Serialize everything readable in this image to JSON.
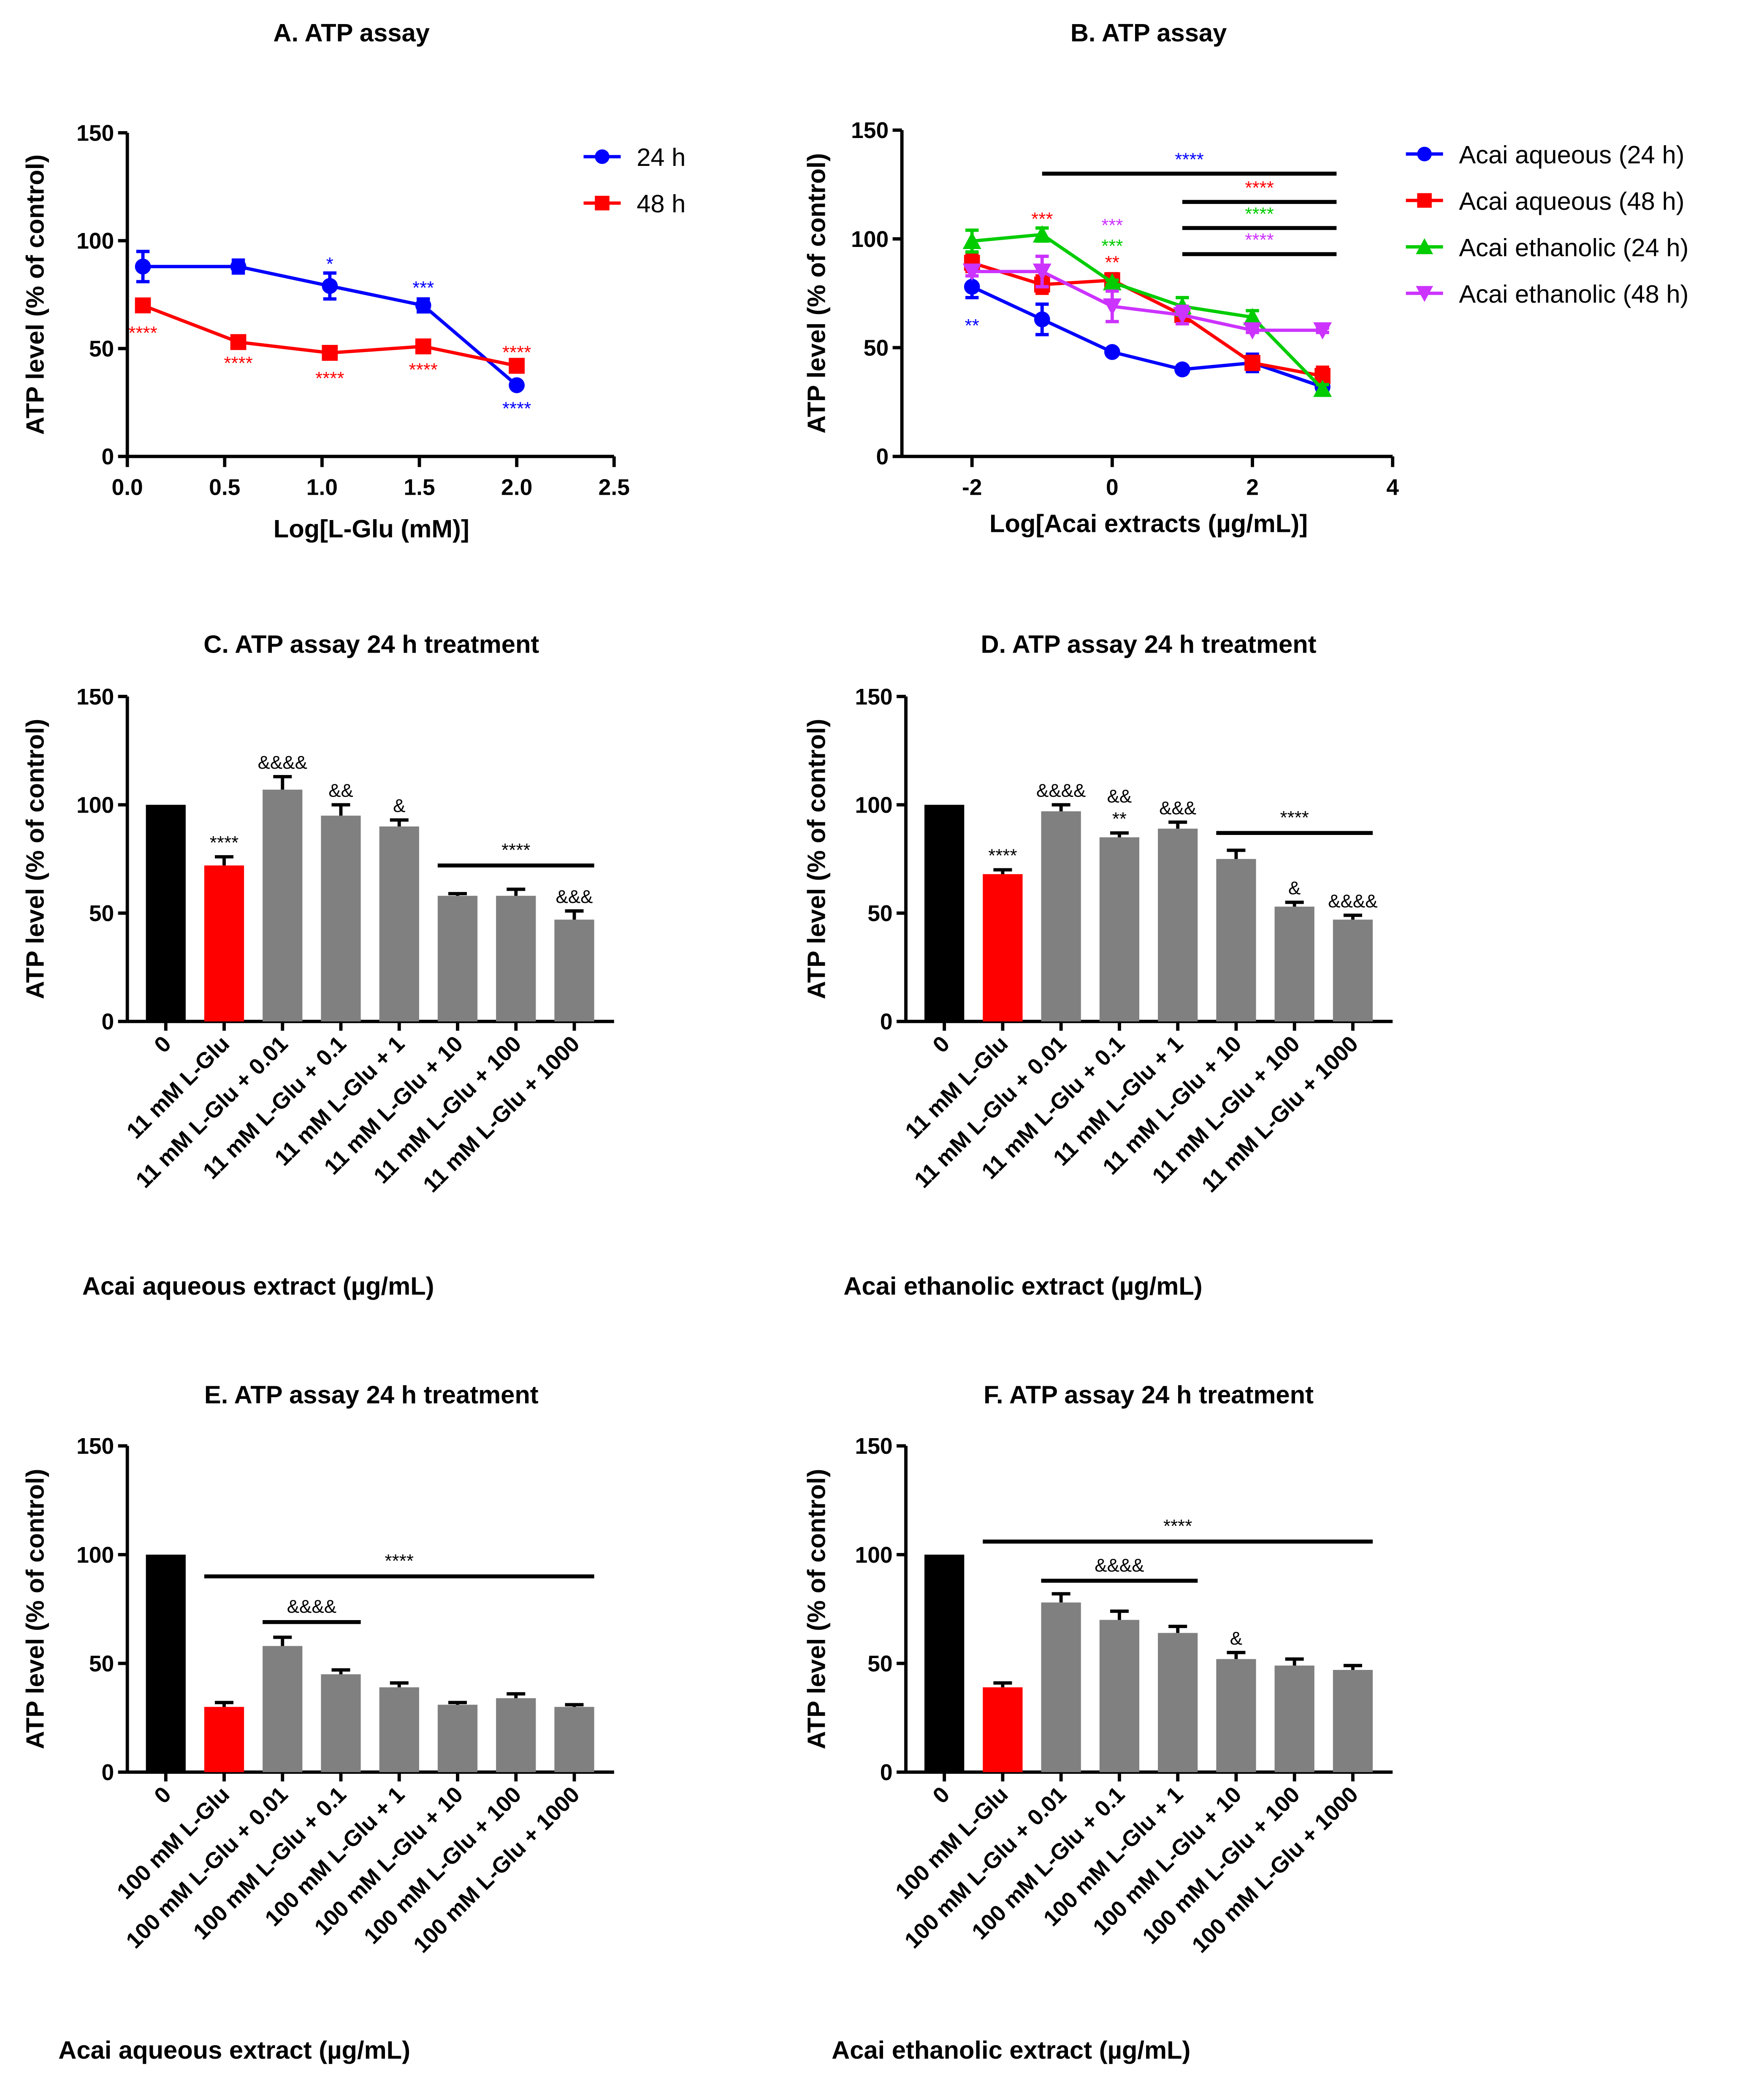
{
  "chart_data": [
    {
      "type": "line",
      "title": "A. ATP assay",
      "xlabel": "Log[L-Glu (mM)]",
      "ylabel": "ATP level (% of control)",
      "xlim": [
        0,
        2.5
      ],
      "ylim": [
        0,
        150
      ],
      "xticks": [
        "0.0",
        "0.5",
        "1.0",
        "1.5",
        "2.0",
        "2.5"
      ],
      "xtick_values": [
        0,
        0.5,
        1.0,
        1.5,
        2.0,
        2.5
      ],
      "yticks": [
        "0",
        "50",
        "100",
        "150"
      ],
      "legend_position": "top-right",
      "series": [
        {
          "name": "24 h",
          "color": "#0000ff",
          "marker": "circle",
          "x": [
            0.08,
            0.57,
            1.04,
            1.52,
            2.0
          ],
          "y": [
            88,
            88,
            79,
            70,
            33
          ],
          "err": [
            7,
            3,
            6,
            3,
            1
          ]
        },
        {
          "name": "48 h",
          "color": "#ff0000",
          "marker": "square",
          "x": [
            0.08,
            0.57,
            1.04,
            1.52,
            2.0
          ],
          "y": [
            70,
            53,
            48,
            51,
            42
          ],
          "err": [
            2,
            1,
            1,
            1,
            2
          ]
        }
      ],
      "annotations": [
        {
          "text": "*",
          "x": 1.04,
          "y": 90,
          "color": "#0000ff"
        },
        {
          "text": "***",
          "x": 1.52,
          "y": 79,
          "color": "#0000ff"
        },
        {
          "text": "****",
          "x": 2.0,
          "y": 23,
          "color": "#0000ff"
        },
        {
          "text": "****",
          "x": 0.08,
          "y": 58,
          "color": "#ff0000"
        },
        {
          "text": "****",
          "x": 0.57,
          "y": 44,
          "color": "#ff0000"
        },
        {
          "text": "****",
          "x": 1.04,
          "y": 37,
          "color": "#ff0000"
        },
        {
          "text": "****",
          "x": 1.52,
          "y": 41,
          "color": "#ff0000"
        },
        {
          "text": "****",
          "x": 2.0,
          "y": 49,
          "color": "#ff0000"
        }
      ],
      "brackets": []
    },
    {
      "type": "line",
      "title": "B. ATP assay",
      "xlabel": "Log[Acai extracts (µg/mL)]",
      "ylabel": "ATP level (% of control)",
      "xlim": [
        -3,
        4
      ],
      "ylim": [
        0,
        150
      ],
      "xticks": [
        "-2",
        "0",
        "2",
        "4"
      ],
      "xtick_values": [
        -2,
        0,
        2,
        4
      ],
      "yticks": [
        "0",
        "50",
        "100",
        "150"
      ],
      "legend_position": "right",
      "series": [
        {
          "name": "Acai aqueous (24 h)",
          "color": "#0000ff",
          "marker": "circle",
          "x": [
            -2,
            -1,
            0,
            1,
            2,
            3
          ],
          "y": [
            78,
            63,
            48,
            40,
            43,
            32
          ],
          "err": [
            5,
            7,
            1,
            1,
            4,
            2
          ]
        },
        {
          "name": "Acai aqueous (48 h)",
          "color": "#ff0000",
          "marker": "square",
          "x": [
            -2,
            -1,
            0,
            1,
            2,
            3
          ],
          "y": [
            89,
            79,
            81,
            65,
            43,
            37
          ],
          "err": [
            4,
            4,
            3,
            4,
            3,
            4
          ]
        },
        {
          "name": "Acai ethanolic (24 h)",
          "color": "#00cc00",
          "marker": "triangle-up",
          "x": [
            -2,
            -1,
            0,
            1,
            2,
            3
          ],
          "y": [
            99,
            102,
            80,
            69,
            64,
            31
          ],
          "err": [
            5,
            3,
            1,
            4,
            3,
            2
          ]
        },
        {
          "name": "Acai ethanolic (48 h)",
          "color": "#cc33ff",
          "marker": "triangle-down",
          "x": [
            -2,
            -1,
            0,
            1,
            2,
            3
          ],
          "y": [
            85,
            85,
            69,
            65,
            58,
            58
          ],
          "err": [
            2,
            7,
            7,
            4,
            1,
            1
          ]
        }
      ],
      "annotations": [
        {
          "text": "**",
          "x": -2,
          "y": 61,
          "color": "#0000ff"
        },
        {
          "text": "***",
          "x": -1,
          "y": 110,
          "color": "#ff0000"
        },
        {
          "text": "***",
          "x": 0,
          "y": 107,
          "color": "#cc33ff"
        },
        {
          "text": "***",
          "x": 0,
          "y": 97.5,
          "color": "#00cc00"
        },
        {
          "text": "**",
          "x": 0,
          "y": 90,
          "color": "#ff0000"
        }
      ],
      "brackets": [
        {
          "from": -1,
          "to": 3.2,
          "value": 130,
          "label": "****",
          "color": "#0000ff"
        },
        {
          "from": 1,
          "to": 3.2,
          "value": 117,
          "label": "****",
          "color": "#ff0000"
        },
        {
          "from": 1,
          "to": 3.2,
          "value": 105,
          "label": "****",
          "color": "#00cc00"
        },
        {
          "from": 1,
          "to": 3.2,
          "value": 93,
          "label": "****",
          "color": "#cc33ff"
        }
      ]
    },
    {
      "type": "bar",
      "title": "C. ATP assay 24 h treatment",
      "xlabel": "Acai aqueous extract (µg/mL)",
      "ylabel": "ATP level (% of control)",
      "ylim": [
        0,
        150
      ],
      "yticks": [
        "0",
        "50",
        "100",
        "150"
      ],
      "categories": [
        "0",
        "11 mM L-Glu",
        "11 mM L-Glu + 0.01",
        "11 mM L-Glu + 0.1",
        "11 mM L-Glu + 1",
        "11 mM L-Glu + 10",
        "11 mM L-Glu + 100",
        "11 mM L-Glu + 1000"
      ],
      "values": [
        100,
        72,
        107,
        95,
        90,
        58,
        58,
        47
      ],
      "err": [
        0,
        4,
        6,
        5,
        3,
        1,
        3,
        4
      ],
      "colors": [
        "#000000",
        "#ff0000",
        "#808080",
        "#808080",
        "#808080",
        "#808080",
        "#808080",
        "#808080"
      ],
      "labels": [
        [],
        [
          "****"
        ],
        [
          "&&&&"
        ],
        [
          "&&"
        ],
        [
          "&"
        ],
        [],
        [],
        [
          "&&&"
        ]
      ],
      "brackets": [
        {
          "from": 5,
          "to": 7,
          "value": 72,
          "label": "****"
        }
      ]
    },
    {
      "type": "bar",
      "title": "D. ATP assay 24 h treatment",
      "xlabel": "Acai ethanolic extract (µg/mL)",
      "ylabel": "ATP level (% of control)",
      "ylim": [
        0,
        150
      ],
      "yticks": [
        "0",
        "50",
        "100",
        "150"
      ],
      "categories": [
        "0",
        "11 mM L-Glu",
        "11 mM L-Glu + 0.01",
        "11 mM L-Glu + 0.1",
        "11 mM L-Glu + 1",
        "11 mM L-Glu + 10",
        "11 mM L-Glu + 100",
        "11 mM L-Glu + 1000"
      ],
      "values": [
        100,
        68,
        97,
        85,
        89,
        75,
        53,
        47
      ],
      "err": [
        0,
        2,
        3,
        2,
        3,
        4,
        2,
        2
      ],
      "colors": [
        "#000000",
        "#ff0000",
        "#808080",
        "#808080",
        "#808080",
        "#808080",
        "#808080",
        "#808080"
      ],
      "labels": [
        [],
        [
          "****"
        ],
        [
          "&&&&"
        ],
        [
          "&&",
          "**"
        ],
        [
          "&&&"
        ],
        [],
        [
          "&"
        ],
        [
          "&&&&"
        ]
      ],
      "brackets": [
        {
          "from": 5,
          "to": 7,
          "value": 87,
          "label": "****"
        }
      ]
    },
    {
      "type": "bar",
      "title": "E. ATP assay 24 h treatment",
      "xlabel": "Acai aqueous extract (µg/mL)",
      "ylabel": "ATP level (% of control)",
      "ylim": [
        0,
        150
      ],
      "yticks": [
        "0",
        "50",
        "100",
        "150"
      ],
      "categories": [
        "0",
        "100 mM L-Glu",
        "100 mM L-Glu + 0.01",
        "100 mM L-Glu + 0.1",
        "100 mM L-Glu + 1",
        "100 mM L-Glu + 10",
        "100 mM L-Glu + 100",
        "100 mM L-Glu + 1000"
      ],
      "values": [
        100,
        30,
        58,
        45,
        39,
        31,
        34,
        30
      ],
      "err": [
        0,
        2,
        4,
        2,
        2,
        1,
        2,
        1
      ],
      "colors": [
        "#000000",
        "#ff0000",
        "#808080",
        "#808080",
        "#808080",
        "#808080",
        "#808080",
        "#808080"
      ],
      "labels": [
        [],
        [],
        [],
        [],
        [],
        [],
        [],
        []
      ],
      "brackets": [
        {
          "from": 1,
          "to": 7,
          "value": 90,
          "label": "****"
        },
        {
          "from": 2,
          "to": 3,
          "value": 69,
          "label": "&&&&"
        }
      ]
    },
    {
      "type": "bar",
      "title": "F. ATP assay 24 h treatment",
      "xlabel": "Acai ethanolic extract (µg/mL)",
      "ylabel": "ATP level (% of control)",
      "ylim": [
        0,
        150
      ],
      "yticks": [
        "0",
        "50",
        "100",
        "150"
      ],
      "categories": [
        "0",
        "100 mM L-Glu",
        "100 mM L-Glu + 0.01",
        "100 mM L-Glu + 0.1",
        "100 mM L-Glu + 1",
        "100 mM L-Glu + 10",
        "100 mM L-Glu + 100",
        "100 mM L-Glu + 1000"
      ],
      "values": [
        100,
        39,
        78,
        70,
        64,
        52,
        49,
        47
      ],
      "err": [
        0,
        2,
        4,
        4,
        3,
        3,
        3,
        2
      ],
      "colors": [
        "#000000",
        "#ff0000",
        "#808080",
        "#808080",
        "#808080",
        "#808080",
        "#808080",
        "#808080"
      ],
      "labels": [
        [],
        [],
        [],
        [],
        [],
        [
          "&"
        ],
        [],
        []
      ],
      "brackets": [
        {
          "from": 1,
          "to": 7,
          "value": 106,
          "label": "****"
        },
        {
          "from": 2,
          "to": 4,
          "value": 88,
          "label": "&&&&"
        }
      ]
    }
  ]
}
